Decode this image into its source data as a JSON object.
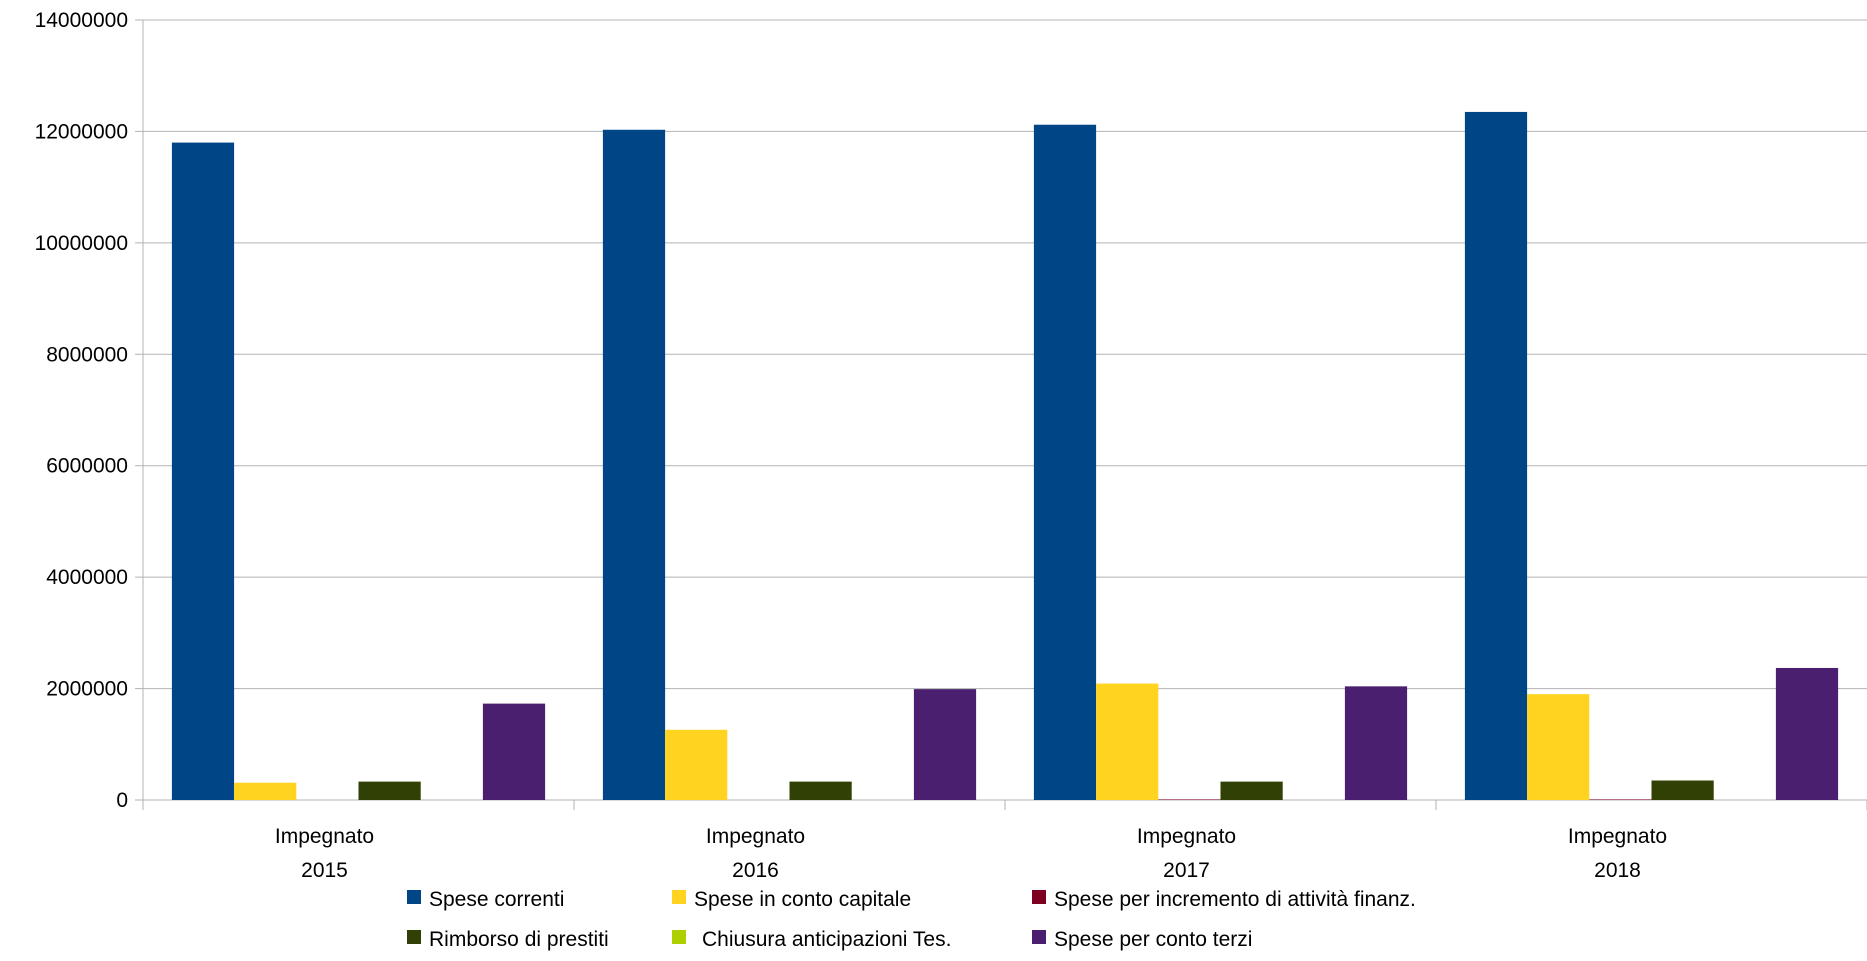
{
  "chart_data": {
    "type": "bar",
    "categories": [
      [
        "Impegnato",
        "2015"
      ],
      [
        "Impegnato",
        "2016"
      ],
      [
        "Impegnato",
        "2017"
      ],
      [
        "Impegnato",
        "2018"
      ]
    ],
    "series": [
      {
        "name": "Spese correnti",
        "color": "#004586",
        "values": [
          11800000,
          12030000,
          12120000,
          12350000
        ]
      },
      {
        "name": "Spese in conto capitale",
        "color": "#ffd320",
        "values": [
          310000,
          1260000,
          2090000,
          1900000
        ]
      },
      {
        "name": "Spese per incremento di attività finanz.",
        "color": "#7e0021",
        "values": [
          0,
          0,
          10000,
          10000
        ]
      },
      {
        "name": "Rimborso di prestiti",
        "color": "#314004",
        "values": [
          330000,
          330000,
          330000,
          350000
        ]
      },
      {
        "name": "Chiusura anticipazioni Tes.",
        "color": "#aecf00",
        "values": [
          0,
          0,
          0,
          0
        ]
      },
      {
        "name": "Spese per conto terzi",
        "color": "#4b1f6f",
        "values": [
          1730000,
          1990000,
          2040000,
          2370000
        ]
      }
    ],
    "y_ticks": [
      "0",
      "2000000",
      "4000000",
      "6000000",
      "8000000",
      "10000000",
      "12000000",
      "14000000"
    ],
    "ylim": [
      0,
      14000000
    ],
    "grid": true,
    "legend_position": "bottom",
    "title": "",
    "xlabel": "",
    "ylabel": ""
  }
}
